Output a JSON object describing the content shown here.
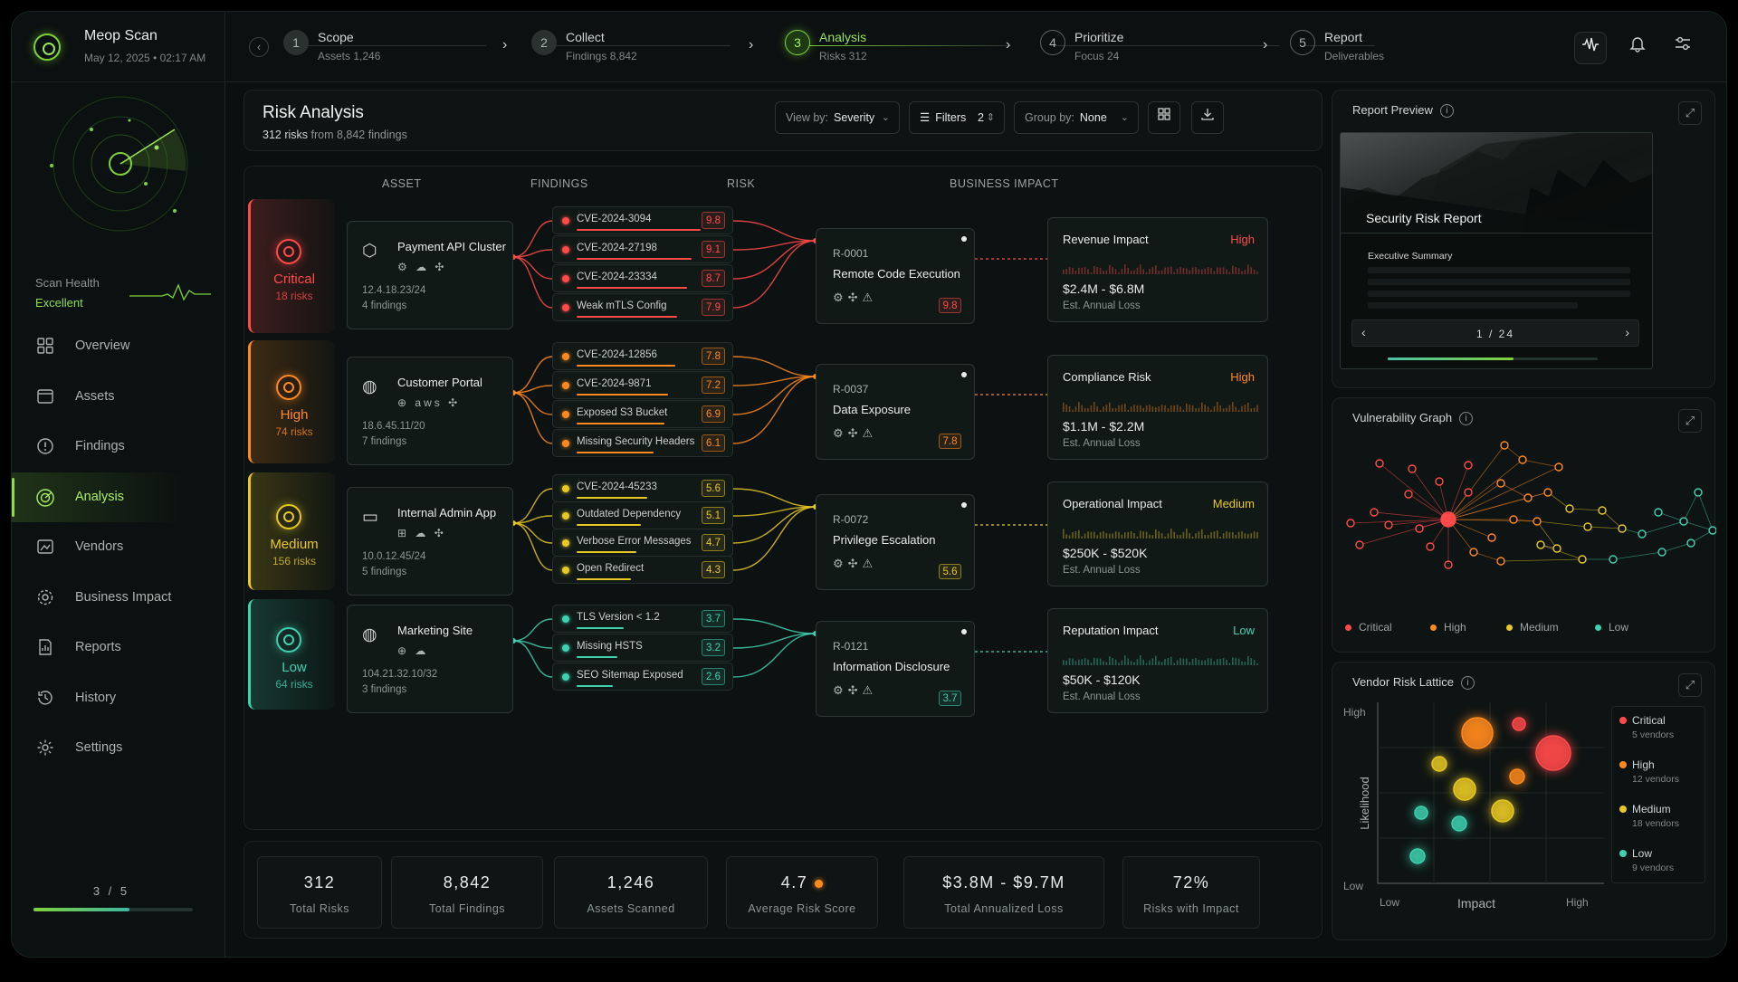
{
  "app": {
    "name": "Meop Scan",
    "datetime": "May 12, 2025  •  02:17 AM"
  },
  "steps": [
    {
      "num": "1",
      "label": "Scope",
      "sub": "Assets 1,246"
    },
    {
      "num": "2",
      "label": "Collect",
      "sub": "Findings 8,842"
    },
    {
      "num": "3",
      "label": "Analysis",
      "sub": "Risks 312"
    },
    {
      "num": "4",
      "label": "Prioritize",
      "sub": "Focus 24"
    },
    {
      "num": "5",
      "label": "Report",
      "sub": "Deliverables"
    }
  ],
  "top_icons": [
    "waveform-icon",
    "bell-icon",
    "sliders-icon"
  ],
  "sidebar": {
    "health_label": "Scan Health",
    "health_value": "Excellent",
    "items": [
      {
        "label": "Overview",
        "icon": "grid-icon"
      },
      {
        "label": "Assets",
        "icon": "folder-icon"
      },
      {
        "label": "Findings",
        "icon": "alert-circle-icon"
      },
      {
        "label": "Analysis",
        "icon": "radar-icon",
        "active": true
      },
      {
        "label": "Vendors",
        "icon": "vendor-icon"
      },
      {
        "label": "Business Impact",
        "icon": "gear-icon"
      },
      {
        "label": "Reports",
        "icon": "report-icon"
      },
      {
        "label": "History",
        "icon": "history-icon"
      },
      {
        "label": "Settings",
        "icon": "settings-icon"
      }
    ],
    "pager": "3 / 5",
    "pager_progress": 0.6
  },
  "main": {
    "title": "Risk Analysis",
    "subtitle_count": "312 risks",
    "subtitle_rest": " from 8,842 findings",
    "view_by_label": "View by:",
    "view_by_value": "Severity",
    "filters_label": "Filters",
    "filters_count": "2",
    "group_by_label": "Group by:",
    "group_by_value": "None",
    "columns": [
      "ASSET",
      "FINDINGS",
      "RISK",
      "BUSINESS IMPACT"
    ]
  },
  "colors": {
    "critical": "#ff4a4a",
    "high": "#ff8a1e",
    "medium": "#e8c824",
    "low": "#3fd1b0",
    "accent": "#8fdc4a"
  },
  "groups": [
    {
      "severity": "Critical",
      "count": "18 risks",
      "color": "#ff4a4a",
      "asset": {
        "name": "Payment API Cluster",
        "icon": "cube-icon",
        "techs": "⚙ ☁ ✣",
        "ip": "12.4.18.23/24",
        "findings": "4 findings"
      },
      "findings": [
        {
          "name": "CVE-2024-3094",
          "score": "9.8"
        },
        {
          "name": "CVE-2024-27198",
          "score": "9.1"
        },
        {
          "name": "CVE-2024-23334",
          "score": "8.7"
        },
        {
          "name": "Weak mTLS Config",
          "score": "7.9"
        }
      ],
      "risk": {
        "id": "R-0001",
        "name": "Remote Code Execution",
        "score": "9.8"
      },
      "impact": {
        "name": "Revenue Impact",
        "level": "High",
        "range": "$2.4M - $6.8M",
        "sub": "Est. Annual Loss"
      }
    },
    {
      "severity": "High",
      "count": "74 risks",
      "color": "#ff8a1e",
      "asset": {
        "name": "Customer Portal",
        "icon": "globe-icon",
        "techs": "⊕ aws ✣",
        "ip": "18.6.45.11/20",
        "findings": "7 findings"
      },
      "findings": [
        {
          "name": "CVE-2024-12856",
          "score": "7.8"
        },
        {
          "name": "CVE-2024-9871",
          "score": "7.2"
        },
        {
          "name": "Exposed S3 Bucket",
          "score": "6.9"
        },
        {
          "name": "Missing Security Headers",
          "score": "6.1"
        }
      ],
      "risk": {
        "id": "R-0037",
        "name": "Data Exposure",
        "score": "7.8"
      },
      "impact": {
        "name": "Compliance Risk",
        "level": "High",
        "range": "$1.1M - $2.2M",
        "sub": "Est. Annual Loss"
      }
    },
    {
      "severity": "Medium",
      "count": "156 risks",
      "color": "#e8c824",
      "asset": {
        "name": "Internal Admin App",
        "icon": "window-icon",
        "techs": "⊞ ☁ ✣",
        "ip": "10.0.12.45/24",
        "findings": "5 findings"
      },
      "findings": [
        {
          "name": "CVE-2024-45233",
          "score": "5.6"
        },
        {
          "name": "Outdated Dependency",
          "score": "5.1"
        },
        {
          "name": "Verbose Error Messages",
          "score": "4.7"
        },
        {
          "name": "Open Redirect",
          "score": "4.3"
        }
      ],
      "risk": {
        "id": "R-0072",
        "name": "Privilege Escalation",
        "score": "5.6"
      },
      "impact": {
        "name": "Operational Impact",
        "level": "Medium",
        "range": "$250K - $520K",
        "sub": "Est. Annual Loss"
      }
    },
    {
      "severity": "Low",
      "count": "64 risks",
      "color": "#3fd1b0",
      "asset": {
        "name": "Marketing Site",
        "icon": "globe-icon",
        "techs": "⊕ ☁",
        "ip": "104.21.32.10/32",
        "findings": "3 findings"
      },
      "findings": [
        {
          "name": "TLS Version < 1.2",
          "score": "3.7"
        },
        {
          "name": "Missing HSTS",
          "score": "3.2"
        },
        {
          "name": "SEO Sitemap Exposed",
          "score": "2.6"
        }
      ],
      "risk": {
        "id": "R-0121",
        "name": "Information Disclosure",
        "score": "3.7"
      },
      "impact": {
        "name": "Reputation Impact",
        "level": "Low",
        "range": "$50K - $120K",
        "sub": "Est. Annual Loss"
      }
    }
  ],
  "stats": [
    {
      "value": "312",
      "label": "Total Risks"
    },
    {
      "value": "8,842",
      "label": "Total Findings"
    },
    {
      "value": "1,246",
      "label": "Assets Scanned"
    },
    {
      "value": "4.7",
      "label": "Average Risk Score"
    },
    {
      "value": "$3.8M - $9.7M",
      "label": "Total Annualized Loss"
    },
    {
      "value": "72%",
      "label": "Risks with Impact"
    }
  ],
  "report_preview": {
    "title": "Report Preview",
    "doc_title": "Security Risk Report",
    "section": "Executive Summary",
    "page": "1  /  24",
    "progress": 0.6
  },
  "vuln_graph": {
    "title": "Vulnerability Graph",
    "legend": [
      "Critical",
      "High",
      "Medium",
      "Low"
    ]
  },
  "vendor_lattice": {
    "title": "Vendor Risk Lattice",
    "y_label": "Likelihood",
    "x_label": "Impact",
    "y_high": "High",
    "y_low": "Low",
    "x_low": "Low",
    "x_high": "High",
    "legend": [
      {
        "name": "Critical",
        "count": "5 vendors"
      },
      {
        "name": "High",
        "count": "12 vendors"
      },
      {
        "name": "Medium",
        "count": "18 vendors"
      },
      {
        "name": "Low",
        "count": "9 vendors"
      }
    ]
  }
}
